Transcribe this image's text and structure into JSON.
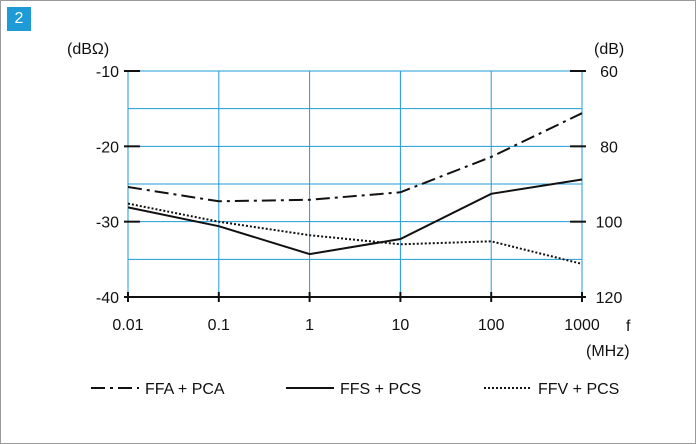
{
  "figure_number": "2",
  "colors": {
    "grid": "#1e9bd7",
    "axis": "#111111",
    "series": "#111111",
    "badge": "#1e9bd7"
  },
  "chart_data": {
    "type": "line",
    "x_scale": "log",
    "xlim": [
      0.01,
      1000
    ],
    "x_ticks": [
      "0.01",
      "0.1",
      "1",
      "10",
      "100",
      "1000"
    ],
    "x_unit_prefix": "f",
    "x_unit": "(MHz)",
    "ylim": [
      -40,
      -10
    ],
    "y_ticks": [
      "-10",
      "-20",
      "-30",
      "-40"
    ],
    "ylabel_left": "(dBΩ)",
    "y2_ticks": [
      "60",
      "80",
      "100",
      "120"
    ],
    "ylabel_right": "(dB)",
    "grid": true,
    "legend_position": "bottom",
    "series": [
      {
        "name": "FFA + PCA",
        "style": "dash-dot",
        "x": [
          0.01,
          0.1,
          1,
          10,
          100,
          1000
        ],
        "y": [
          -25.4,
          -27.3,
          -27.1,
          -26.1,
          -21.4,
          -15.6
        ]
      },
      {
        "name": "FFS + PCS",
        "style": "solid",
        "x": [
          0.01,
          0.1,
          1,
          10,
          100,
          1000
        ],
        "y": [
          -28.1,
          -30.6,
          -34.3,
          -32.3,
          -26.3,
          -24.4
        ]
      },
      {
        "name": "FFV + PCS",
        "style": "dotted",
        "x": [
          0.01,
          0.1,
          1,
          10,
          100,
          1000
        ],
        "y": [
          -27.6,
          -30.0,
          -31.8,
          -33.0,
          -32.6,
          -35.6
        ]
      }
    ]
  }
}
